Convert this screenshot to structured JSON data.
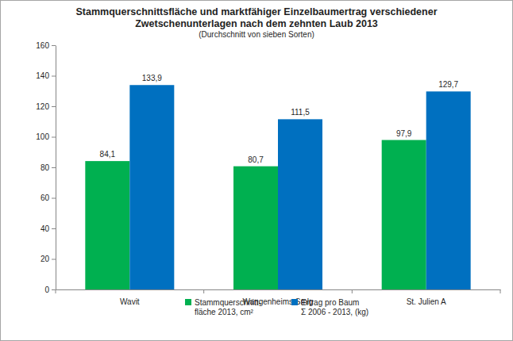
{
  "chart_data": {
    "type": "bar",
    "title": "Stammquerschnittsfläche und marktfähiger Einzelbaumertrag verschiedener\nZwetschenunterlagen nach dem zehnten Laub 2013",
    "subtitle": "(Durchschnitt von sieben Sorten)",
    "categories": [
      "Wavit",
      "Wangenheims Smlg",
      "St. Julien A"
    ],
    "series": [
      {
        "name": "Stammquerschnitt-\nfläche 2013, cm²",
        "color": "#00b050",
        "values": [
          84.1,
          80.7,
          97.9
        ],
        "value_labels": [
          "84,1",
          "80,7",
          "97,9"
        ]
      },
      {
        "name": "Ertrag pro Baum\nΣ 2006 - 2013, (kg)",
        "color": "#0070c0",
        "values": [
          133.9,
          111.5,
          129.7
        ],
        "value_labels": [
          "133,9",
          "111,5",
          "129,7"
        ]
      }
    ],
    "ylim": [
      0,
      160
    ],
    "yticks": [
      0,
      20,
      40,
      60,
      80,
      100,
      120,
      140,
      160
    ],
    "grid": false,
    "legend": "bottom",
    "data_labels": true
  }
}
